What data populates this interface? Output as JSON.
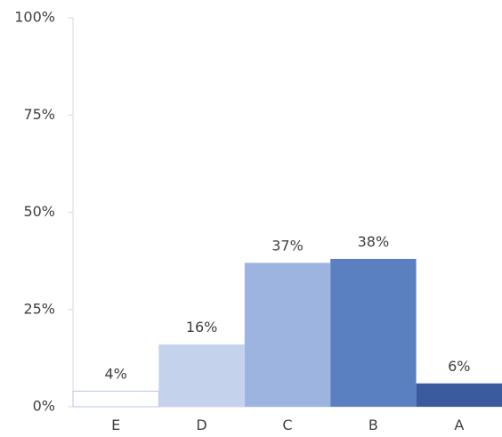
{
  "chart_data": {
    "type": "bar",
    "title": "",
    "xlabel": "",
    "ylabel": "",
    "categories": [
      "E",
      "D",
      "C",
      "B",
      "A"
    ],
    "values": [
      4,
      16,
      37,
      38,
      6
    ],
    "value_labels": [
      "4%",
      "16%",
      "37%",
      "38%",
      "6%"
    ],
    "colors": [
      "#ffffff",
      "#c5d2ec",
      "#9db4e0",
      "#5b80c2",
      "#3a5c9e"
    ],
    "ylim": [
      0,
      100
    ],
    "yticks": [
      0,
      25,
      50,
      75,
      100
    ],
    "ytick_labels": [
      "0%",
      "25%",
      "50%",
      "75%",
      "100%"
    ],
    "grid": false,
    "legend": "none"
  }
}
